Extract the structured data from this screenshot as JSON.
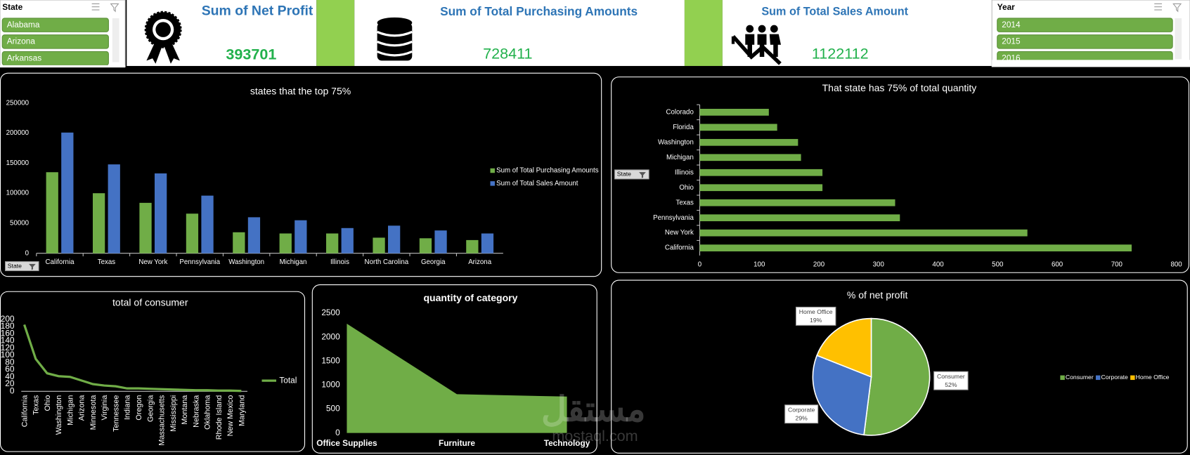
{
  "slicers": [
    {
      "title": "State",
      "items": [
        "Alabama",
        "Arizona",
        "Arkansas"
      ]
    },
    {
      "title": "Year",
      "items": [
        "2014",
        "2015",
        "2016"
      ]
    }
  ],
  "kpis": [
    {
      "title": "Sum of Net Profit",
      "value": "393701"
    },
    {
      "title": "Sum of Total Purchasing Amounts",
      "value": "728411"
    },
    {
      "title": "Sum of Total Sales Amount",
      "value": "1122112"
    }
  ],
  "filter_buttons": [
    "State",
    "State"
  ],
  "watermark": {
    "arabic": "مستقل",
    "latin": "mostaql.com"
  },
  "chart_data": [
    {
      "type": "bar",
      "title": "states that the top 75%",
      "categories": [
        "California",
        "Texas",
        "New York",
        "Pennsylvania",
        "Washington",
        "Michigan",
        "Illinois",
        "North Carolina",
        "Georgia",
        "Arizona"
      ],
      "series": [
        {
          "name": "Sum of Total Purchasing Amounts",
          "color": "#70ad47",
          "values": [
            135000,
            100000,
            84000,
            66000,
            35000,
            33000,
            33000,
            26000,
            25000,
            22000
          ]
        },
        {
          "name": "Sum of Total Sales Amount",
          "color": "#4472c4",
          "values": [
            201000,
            148000,
            133000,
            96000,
            60000,
            55000,
            42000,
            46000,
            38000,
            33000
          ]
        }
      ],
      "ylim": [
        0,
        250000
      ],
      "yticks": [
        0,
        50000,
        100000,
        150000,
        200000,
        250000
      ],
      "legend": "right"
    },
    {
      "type": "bar",
      "orientation": "horizontal",
      "title": "That state  has 75% of total quantity",
      "categories": [
        "Colorado",
        "Florida",
        "Washington",
        "Michigan",
        "Illinois",
        "Ohio",
        "Texas",
        "Pennsylvania",
        "New York",
        "California"
      ],
      "values": [
        116,
        130,
        165,
        170,
        206,
        206,
        328,
        336,
        550,
        725
      ],
      "color": "#70ad47",
      "xlim": [
        0,
        800
      ],
      "xticks": [
        0,
        100,
        200,
        300,
        400,
        500,
        600,
        700,
        800
      ]
    },
    {
      "type": "line",
      "title": "total of consumer",
      "categories": [
        "California",
        "Texas",
        "Ohio",
        "Washington",
        "Michigan",
        "Arizona",
        "Minnesota",
        "Virginia",
        "Tennessee",
        "Indiana",
        "Oregon",
        "Georgia",
        "Massachusetts",
        "Mississippi",
        "Montana",
        "Nebraska",
        "Oklahoma",
        "Rhode Island",
        "New Mexico",
        "Maryland"
      ],
      "series": [
        {
          "name": "Total",
          "color": "#70ad47",
          "values": [
            185,
            90,
            50,
            42,
            40,
            30,
            20,
            16,
            14,
            8,
            8,
            7,
            6,
            5,
            4,
            3,
            3,
            2,
            2,
            1
          ]
        }
      ],
      "ylim": [
        0,
        200
      ],
      "yticks": [
        0,
        20,
        40,
        60,
        80,
        100,
        120,
        140,
        160,
        180,
        200
      ],
      "legend": "right"
    },
    {
      "type": "area",
      "title": "quantity of category",
      "categories": [
        "Office Supplies",
        "Furniture",
        "Technology"
      ],
      "values": [
        2280,
        810,
        760
      ],
      "color": "#70ad47",
      "ylim": [
        0,
        2500
      ],
      "yticks": [
        0,
        500,
        1000,
        1500,
        2000,
        2500
      ]
    },
    {
      "type": "pie",
      "title": "% of net profit",
      "categories": [
        "Consumer",
        "Corporate",
        "Home Office"
      ],
      "values": [
        52,
        29,
        19
      ],
      "value_labels": [
        "52%",
        "29%",
        "19%"
      ],
      "colors": [
        "#70ad47",
        "#4472c4",
        "#ffc000"
      ],
      "legend": "right"
    }
  ]
}
